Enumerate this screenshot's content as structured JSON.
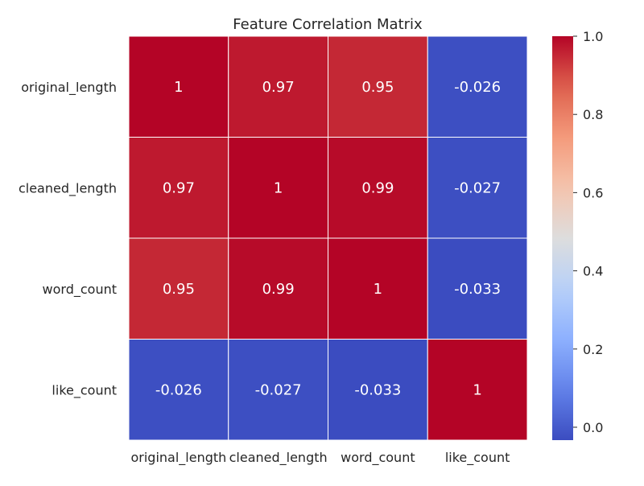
{
  "chart_data": {
    "type": "heatmap",
    "title": "Feature Correlation Matrix",
    "xlabel": "",
    "ylabel": "",
    "x_categories": [
      "original_length",
      "cleaned_length",
      "word_count",
      "like_count"
    ],
    "y_categories": [
      "original_length",
      "cleaned_length",
      "word_count",
      "like_count"
    ],
    "matrix": [
      [
        1.0,
        0.97,
        0.95,
        -0.026
      ],
      [
        0.97,
        1.0,
        0.99,
        -0.027
      ],
      [
        0.95,
        0.99,
        1.0,
        -0.033
      ],
      [
        -0.026,
        -0.027,
        -0.033,
        1.0
      ]
    ],
    "cell_labels": [
      [
        "1",
        "0.97",
        "0.95",
        "-0.026"
      ],
      [
        "0.97",
        "1",
        "0.99",
        "-0.027"
      ],
      [
        "0.95",
        "0.99",
        "1",
        "-0.033"
      ],
      [
        "-0.026",
        "-0.027",
        "-0.033",
        "1"
      ]
    ],
    "colormap": "coolwarm",
    "colorbar": {
      "range": [
        -0.033,
        1.0
      ],
      "ticks": [
        0.0,
        0.2,
        0.4,
        0.6,
        0.8,
        1.0
      ],
      "tick_labels": [
        "0.0",
        "0.2",
        "0.4",
        "0.6",
        "0.8",
        "1.0"
      ]
    },
    "colors": {
      "cool": "#3b4cc0",
      "warm": "#b40426",
      "cell_text": "#ffffff",
      "cell_border": "#ffffff"
    },
    "grid": false,
    "legend": "colorbar-right"
  }
}
